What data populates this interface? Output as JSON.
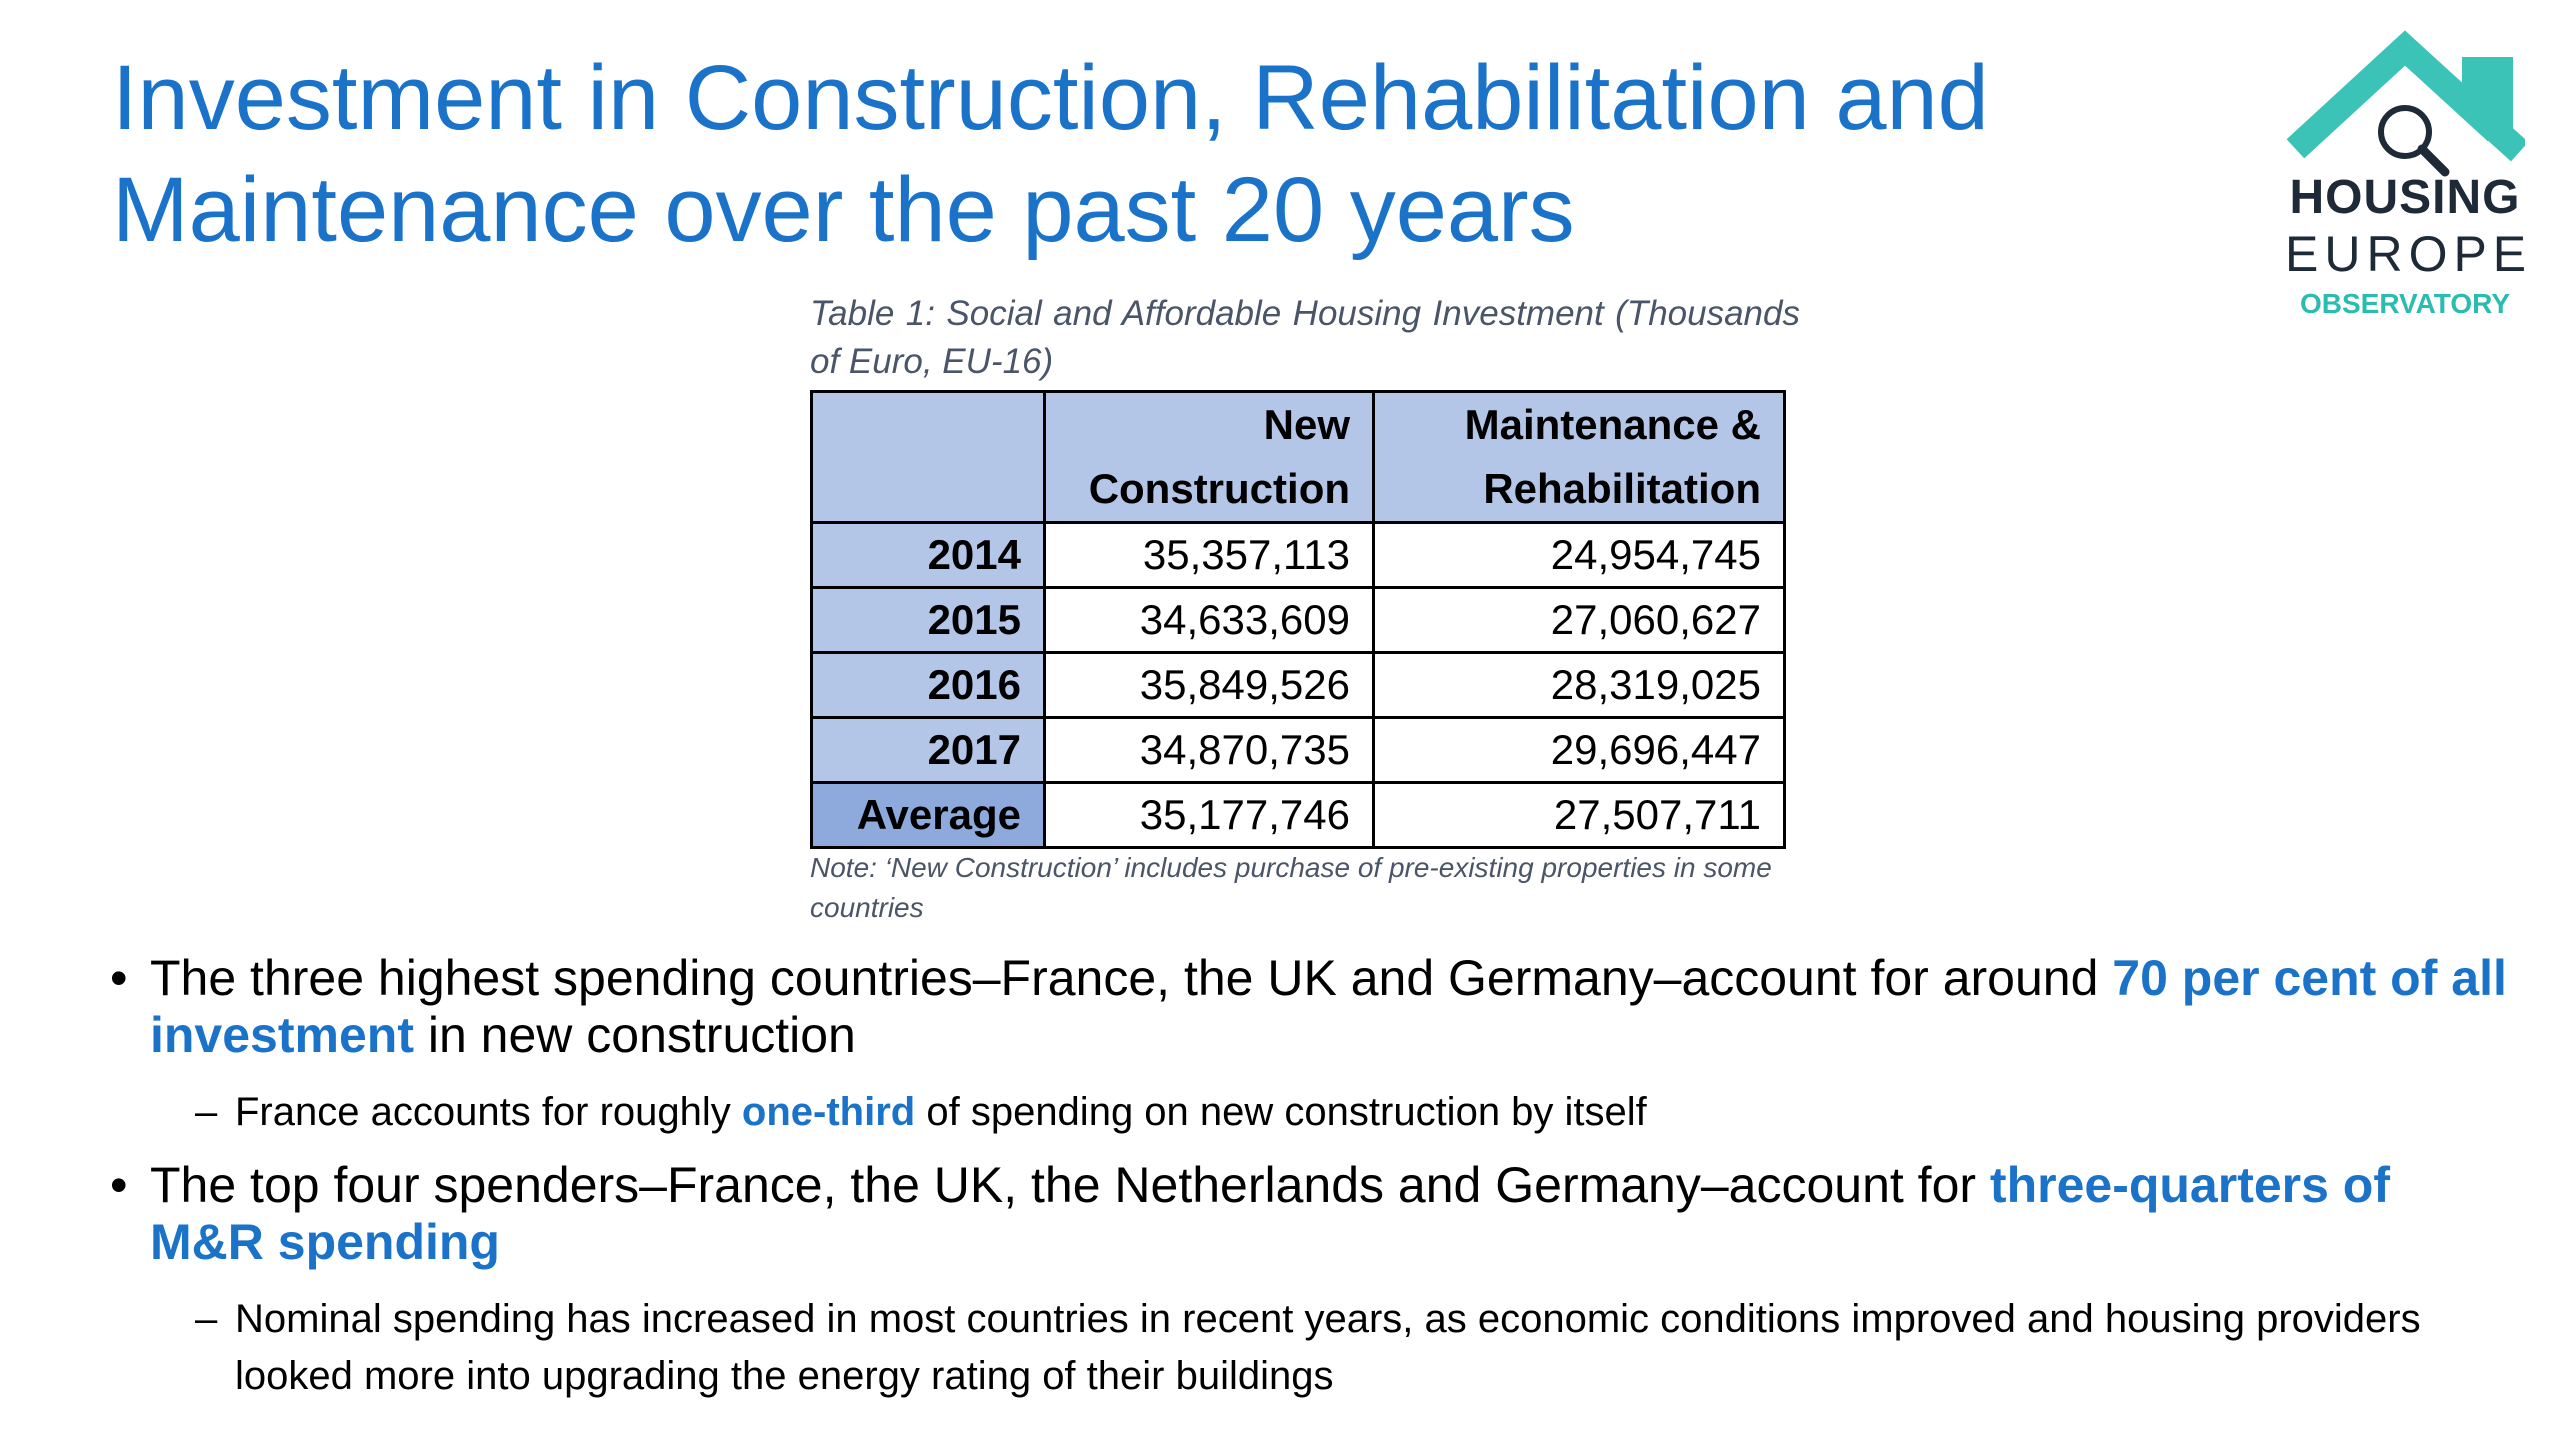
{
  "title": "Investment in Construction, Rehabilitation and Maintenance over the past 20 years",
  "logo": {
    "line1": "HOUSING",
    "line2": "EUROPE",
    "line3": "OBSERVATORY",
    "colors": {
      "roof": "#3cc3b8",
      "text": "#1e2a38",
      "accent": "#2bbcb0"
    }
  },
  "table": {
    "caption": "Table 1: Social and Affordable Housing Investment (Thousands of Euro, EU-16)",
    "headers": [
      "",
      "New Construction",
      "Maintenance & Rehabilitation"
    ],
    "header_col1_line1": "New",
    "header_col1_line2": "Construction",
    "header_col2_line1": "Maintenance &",
    "header_col2_line2": "Rehabilitation",
    "rows": [
      {
        "year": "2014",
        "new": "35,357,113",
        "mr": "24,954,745"
      },
      {
        "year": "2015",
        "new": "34,633,609",
        "mr": "27,060,627"
      },
      {
        "year": "2016",
        "new": "35,849,526",
        "mr": "28,319,025"
      },
      {
        "year": "2017",
        "new": "34,870,735",
        "mr": "29,696,447"
      },
      {
        "year": "Average",
        "new": "35,177,746",
        "mr": "27,507,711"
      }
    ],
    "note": "Note: ‘New Construction’ includes purchase of pre-existing properties in some countries"
  },
  "bullets": {
    "b1_text": "The three highest spending countries–France, the UK and Germany–account for around ",
    "b1_highlight": "70 per cent of all investment",
    "b1_tail": " in new construction",
    "b1_sub_text": "France accounts for roughly ",
    "b1_sub_highlight": "one-third",
    "b1_sub_tail": " of spending on new construction by itself",
    "b2_text": "The top four spenders–France, the UK, the Netherlands and Germany–account for ",
    "b2_highlight": "three-quarters of M&R spending",
    "b2_sub_text": "Nominal spending has increased in most countries in recent years, as economic conditions improved and housing providers looked more into upgrading the energy rating of their buildings"
  },
  "colors": {
    "title": "#1a73c8",
    "highlight": "#1a73c8",
    "table_header": "#b4c6e7",
    "table_avg": "#8ea9db"
  }
}
